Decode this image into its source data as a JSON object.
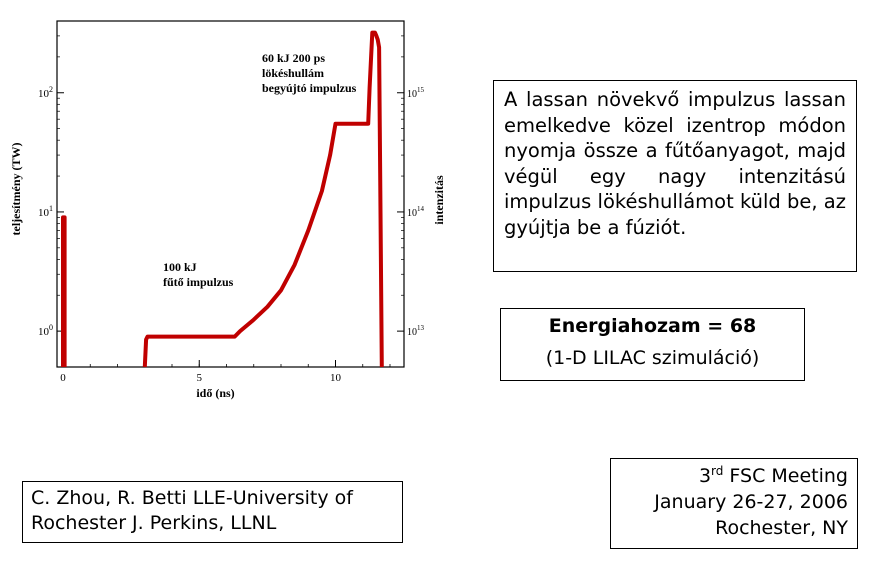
{
  "chart_data": {
    "type": "line",
    "title": "",
    "xlabel": "idő (ns)",
    "ylabel": "teljesítmény (TW)",
    "y2label": "intenzitás",
    "xlim": [
      0,
      12
    ],
    "ylim_log": [
      0.5,
      400
    ],
    "y2lim_log": [
      5000000000000.0,
      4000000000000000.0
    ],
    "x_ticks": [
      0,
      5,
      10
    ],
    "y_ticks": [
      1,
      10,
      100
    ],
    "y_tick_labels": [
      "10^0",
      "10^1",
      "10^2"
    ],
    "y2_ticks": [
      10000000000000.0,
      100000000000000.0,
      1000000000000000.0
    ],
    "y2_tick_labels": [
      "10^13",
      "10^14",
      "10^15"
    ],
    "color": "#c00000",
    "annotations": [
      {
        "lines": [
          "60 kJ 200 ps",
          "lökéshullám",
          "begyújtó impulzus"
        ]
      },
      {
        "lines": [
          "100 kJ",
          "fűtő impulzus"
        ]
      }
    ],
    "series": [
      {
        "name": "",
        "x": [
          0.0,
          0.0,
          0.06,
          0.06
        ],
        "y": [
          0.5,
          9.0,
          9.0,
          0.5
        ]
      },
      {
        "name": "",
        "x": [
          3.0,
          3.05,
          3.1,
          4.0,
          5.0,
          6.3,
          6.5,
          7.0,
          7.5,
          8.0,
          8.5,
          9.0,
          9.5,
          9.8,
          10.0,
          11.2,
          11.25,
          11.35,
          11.45,
          11.5,
          11.55,
          11.6,
          11.65,
          11.7
        ],
        "y": [
          0.5,
          0.85,
          0.9,
          0.9,
          0.9,
          0.9,
          1.0,
          1.25,
          1.6,
          2.2,
          3.6,
          7.0,
          15.0,
          30.0,
          55.0,
          55.0,
          110.0,
          320.0,
          320.0,
          300.0,
          280.0,
          240.0,
          10.0,
          0.5
        ]
      }
    ]
  },
  "desc_text": "A lassan növekvő impulzus lassan emelkedve közel izentrop módon nyomja össze a fűtőanyagot, majd végül egy nagy intenzitású impulzus lökéshullámot küld be, az gyújtja be a fúziót.",
  "yield": {
    "title": "Energiahozam = 68",
    "subtitle": "(1-D LILAC szimuláció)"
  },
  "authors": "C. Zhou, R. Betti LLE-University of Rochester J. Perkins, LLNL",
  "meeting": {
    "ordinal_num": "3",
    "ordinal_suffix": "rd",
    "name": "FSC Meeting",
    "date": "January 26-27, 2006",
    "place": "Rochester, NY"
  }
}
